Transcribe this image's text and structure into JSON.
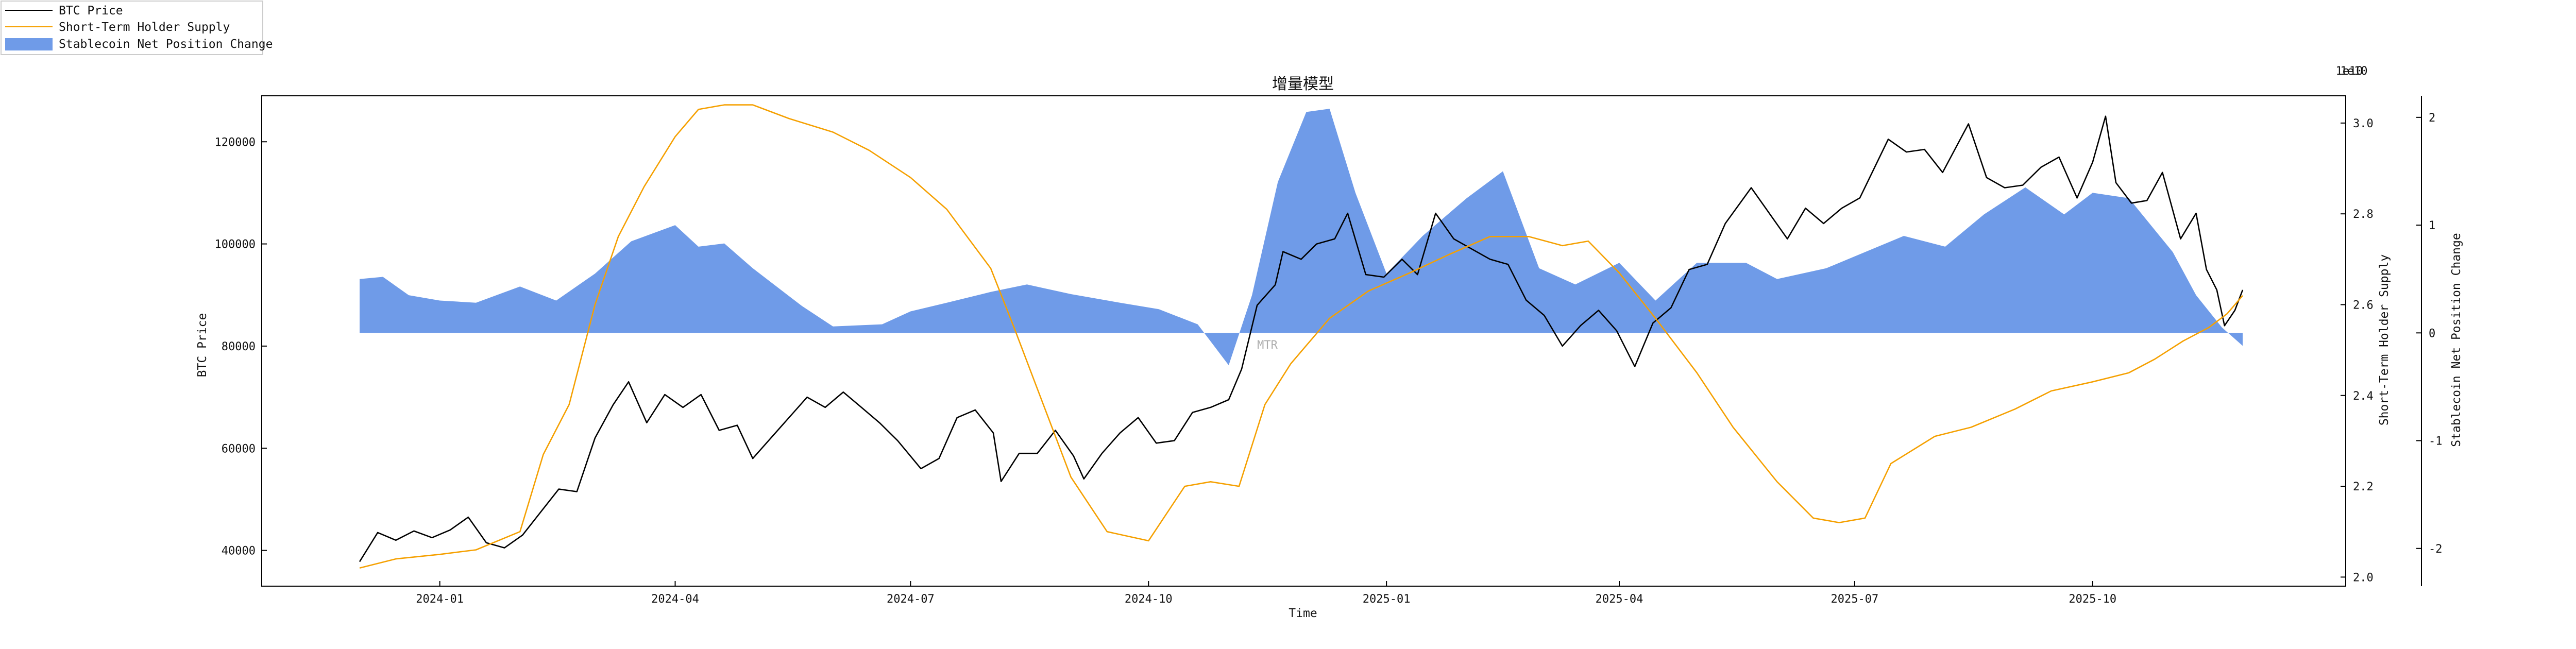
{
  "chart_data": {
    "type": "line",
    "title": "增量模型",
    "xlabel": "Time",
    "x_ticks": [
      "2024-01",
      "2024-04",
      "2024-07",
      "2024-10",
      "2025-01",
      "2025-04",
      "2025-07",
      "2025-10"
    ],
    "x_range": [
      "2023-12-01",
      "2025-11-30"
    ],
    "legend": {
      "placement": "top-left outside",
      "entries": [
        "BTC Price",
        "Short-Term Holder Supply",
        "Stablecoin Net Position Change"
      ]
    },
    "watermark": "MTR",
    "grid": false,
    "axes": {
      "left": {
        "label": "BTC Price",
        "ylim": [
          33000,
          129000
        ],
        "ticks": [
          40000,
          60000,
          80000,
          100000,
          120000
        ]
      },
      "right1": {
        "label": "Short-Term Holder Supply",
        "ylim": [
          1.98,
          3.06
        ],
        "ticks": [
          "2.0",
          "2.2",
          "2.4",
          "2.6",
          "2.8",
          "3.0"
        ],
        "offset_text": "1e10"
      },
      "right2": {
        "label": "Stablecoin Net Position Change",
        "ylim": [
          -2.35,
          2.2
        ],
        "ticks": [
          "-2",
          "-1",
          "0",
          "1",
          "2"
        ],
        "offset_text": "1e10"
      }
    },
    "series": [
      {
        "name": "BTC Price",
        "type": "line",
        "axis": "left",
        "color": "#000000",
        "points": [
          [
            "2023-12-01",
            37800
          ],
          [
            "2023-12-08",
            43500
          ],
          [
            "2023-12-15",
            42000
          ],
          [
            "2023-12-22",
            43800
          ],
          [
            "2023-12-29",
            42500
          ],
          [
            "2024-01-05",
            44000
          ],
          [
            "2024-01-12",
            46500
          ],
          [
            "2024-01-19",
            41500
          ],
          [
            "2024-01-26",
            40500
          ],
          [
            "2024-02-02",
            43000
          ],
          [
            "2024-02-09",
            47500
          ],
          [
            "2024-02-16",
            52000
          ],
          [
            "2024-02-23",
            51500
          ],
          [
            "2024-03-01",
            62000
          ],
          [
            "2024-03-08",
            68500
          ],
          [
            "2024-03-14",
            73000
          ],
          [
            "2024-03-21",
            65000
          ],
          [
            "2024-03-28",
            70500
          ],
          [
            "2024-04-04",
            68000
          ],
          [
            "2024-04-11",
            70500
          ],
          [
            "2024-04-18",
            63500
          ],
          [
            "2024-04-25",
            64500
          ],
          [
            "2024-05-01",
            58000
          ],
          [
            "2024-05-08",
            62000
          ],
          [
            "2024-05-15",
            66000
          ],
          [
            "2024-05-22",
            70000
          ],
          [
            "2024-05-29",
            68000
          ],
          [
            "2024-06-05",
            71000
          ],
          [
            "2024-06-12",
            68000
          ],
          [
            "2024-06-19",
            65000
          ],
          [
            "2024-06-26",
            61500
          ],
          [
            "2024-07-05",
            56000
          ],
          [
            "2024-07-12",
            58000
          ],
          [
            "2024-07-19",
            66000
          ],
          [
            "2024-07-26",
            67500
          ],
          [
            "2024-08-02",
            63000
          ],
          [
            "2024-08-05",
            53500
          ],
          [
            "2024-08-12",
            59000
          ],
          [
            "2024-08-19",
            59000
          ],
          [
            "2024-08-26",
            63500
          ],
          [
            "2024-09-02",
            58500
          ],
          [
            "2024-09-06",
            54000
          ],
          [
            "2024-09-13",
            59000
          ],
          [
            "2024-09-20",
            63000
          ],
          [
            "2024-09-27",
            66000
          ],
          [
            "2024-10-04",
            61000
          ],
          [
            "2024-10-11",
            61500
          ],
          [
            "2024-10-18",
            67000
          ],
          [
            "2024-10-25",
            68000
          ],
          [
            "2024-11-01",
            69500
          ],
          [
            "2024-11-06",
            75500
          ],
          [
            "2024-11-12",
            88000
          ],
          [
            "2024-11-19",
            92000
          ],
          [
            "2024-11-22",
            98500
          ],
          [
            "2024-11-29",
            97000
          ],
          [
            "2024-12-05",
            100000
          ],
          [
            "2024-12-12",
            101000
          ],
          [
            "2024-12-17",
            106000
          ],
          [
            "2024-12-24",
            94000
          ],
          [
            "2024-12-31",
            93500
          ],
          [
            "2025-01-07",
            97000
          ],
          [
            "2025-01-13",
            94000
          ],
          [
            "2025-01-20",
            106000
          ],
          [
            "2025-01-27",
            101000
          ],
          [
            "2025-02-03",
            99000
          ],
          [
            "2025-02-10",
            97000
          ],
          [
            "2025-02-17",
            96000
          ],
          [
            "2025-02-24",
            89000
          ],
          [
            "2025-03-03",
            86000
          ],
          [
            "2025-03-10",
            80000
          ],
          [
            "2025-03-17",
            84000
          ],
          [
            "2025-03-24",
            87000
          ],
          [
            "2025-03-31",
            83000
          ],
          [
            "2025-04-07",
            76000
          ],
          [
            "2025-04-14",
            84500
          ],
          [
            "2025-04-21",
            87500
          ],
          [
            "2025-04-28",
            95000
          ],
          [
            "2025-05-05",
            96000
          ],
          [
            "2025-05-12",
            104000
          ],
          [
            "2025-05-22",
            111000
          ],
          [
            "2025-05-29",
            106000
          ],
          [
            "2025-06-05",
            101000
          ],
          [
            "2025-06-12",
            107000
          ],
          [
            "2025-06-19",
            104000
          ],
          [
            "2025-06-26",
            107000
          ],
          [
            "2025-07-03",
            109000
          ],
          [
            "2025-07-14",
            120500
          ],
          [
            "2025-07-21",
            118000
          ],
          [
            "2025-07-28",
            118500
          ],
          [
            "2025-08-04",
            114000
          ],
          [
            "2025-08-14",
            123500
          ],
          [
            "2025-08-21",
            113000
          ],
          [
            "2025-08-28",
            111000
          ],
          [
            "2025-09-04",
            111500
          ],
          [
            "2025-09-11",
            115000
          ],
          [
            "2025-09-18",
            117000
          ],
          [
            "2025-09-25",
            109000
          ],
          [
            "2025-10-01",
            116000
          ],
          [
            "2025-10-06",
            125000
          ],
          [
            "2025-10-10",
            112000
          ],
          [
            "2025-10-16",
            108000
          ],
          [
            "2025-10-22",
            108500
          ],
          [
            "2025-10-28",
            114000
          ],
          [
            "2025-11-04",
            101000
          ],
          [
            "2025-11-10",
            106000
          ],
          [
            "2025-11-14",
            95000
          ],
          [
            "2025-11-18",
            91000
          ],
          [
            "2025-11-21",
            84000
          ],
          [
            "2025-11-25",
            87000
          ],
          [
            "2025-11-28",
            91000
          ]
        ]
      },
      {
        "name": "Short-Term Holder Supply",
        "type": "line",
        "axis": "right1",
        "color": "#f5a000",
        "points": [
          [
            "2023-12-01",
            2.02
          ],
          [
            "2023-12-15",
            2.04
          ],
          [
            "2024-01-01",
            2.05
          ],
          [
            "2024-01-15",
            2.06
          ],
          [
            "2024-02-01",
            2.1
          ],
          [
            "2024-02-10",
            2.27
          ],
          [
            "2024-02-20",
            2.38
          ],
          [
            "2024-03-01",
            2.6
          ],
          [
            "2024-03-10",
            2.75
          ],
          [
            "2024-03-20",
            2.86
          ],
          [
            "2024-04-01",
            2.97
          ],
          [
            "2024-04-10",
            3.03
          ],
          [
            "2024-04-20",
            3.04
          ],
          [
            "2024-05-01",
            3.04
          ],
          [
            "2024-05-15",
            3.01
          ],
          [
            "2024-06-01",
            2.98
          ],
          [
            "2024-06-15",
            2.94
          ],
          [
            "2024-07-01",
            2.88
          ],
          [
            "2024-07-15",
            2.81
          ],
          [
            "2024-08-01",
            2.68
          ],
          [
            "2024-08-10",
            2.55
          ],
          [
            "2024-08-20",
            2.4
          ],
          [
            "2024-09-01",
            2.22
          ],
          [
            "2024-09-15",
            2.1
          ],
          [
            "2024-10-01",
            2.08
          ],
          [
            "2024-10-15",
            2.2
          ],
          [
            "2024-10-25",
            2.21
          ],
          [
            "2024-11-05",
            2.2
          ],
          [
            "2024-11-15",
            2.38
          ],
          [
            "2024-11-25",
            2.47
          ],
          [
            "2024-12-10",
            2.57
          ],
          [
            "2024-12-25",
            2.63
          ],
          [
            "2025-01-10",
            2.67
          ],
          [
            "2025-01-25",
            2.71
          ],
          [
            "2025-02-10",
            2.75
          ],
          [
            "2025-02-25",
            2.75
          ],
          [
            "2025-03-10",
            2.73
          ],
          [
            "2025-03-20",
            2.74
          ],
          [
            "2025-04-01",
            2.67
          ],
          [
            "2025-04-15",
            2.57
          ],
          [
            "2025-05-01",
            2.45
          ],
          [
            "2025-05-15",
            2.33
          ],
          [
            "2025-06-01",
            2.21
          ],
          [
            "2025-06-15",
            2.13
          ],
          [
            "2025-06-25",
            2.12
          ],
          [
            "2025-07-05",
            2.13
          ],
          [
            "2025-07-15",
            2.25
          ],
          [
            "2025-08-01",
            2.31
          ],
          [
            "2025-08-15",
            2.33
          ],
          [
            "2025-09-01",
            2.37
          ],
          [
            "2025-09-15",
            2.41
          ],
          [
            "2025-10-01",
            2.43
          ],
          [
            "2025-10-15",
            2.45
          ],
          [
            "2025-10-25",
            2.48
          ],
          [
            "2025-11-05",
            2.52
          ],
          [
            "2025-11-15",
            2.55
          ],
          [
            "2025-11-22",
            2.58
          ],
          [
            "2025-11-28",
            2.62
          ]
        ]
      },
      {
        "name": "Stablecoin Net Position Change",
        "type": "area",
        "axis": "right2",
        "color": "#6f9be8",
        "points": [
          [
            "2023-12-01",
            0.5
          ],
          [
            "2023-12-10",
            0.52
          ],
          [
            "2023-12-20",
            0.35
          ],
          [
            "2024-01-01",
            0.3
          ],
          [
            "2024-01-15",
            0.28
          ],
          [
            "2024-02-01",
            0.43
          ],
          [
            "2024-02-15",
            0.3
          ],
          [
            "2024-03-01",
            0.55
          ],
          [
            "2024-03-15",
            0.85
          ],
          [
            "2024-04-01",
            1.0
          ],
          [
            "2024-04-10",
            0.8
          ],
          [
            "2024-04-20",
            0.83
          ],
          [
            "2024-05-01",
            0.6
          ],
          [
            "2024-05-20",
            0.25
          ],
          [
            "2024-06-01",
            0.06
          ],
          [
            "2024-06-20",
            0.08
          ],
          [
            "2024-07-01",
            0.2
          ],
          [
            "2024-07-15",
            0.28
          ],
          [
            "2024-08-01",
            0.38
          ],
          [
            "2024-08-15",
            0.45
          ],
          [
            "2024-09-01",
            0.36
          ],
          [
            "2024-09-20",
            0.28
          ],
          [
            "2024-10-05",
            0.22
          ],
          [
            "2024-10-20",
            0.08
          ],
          [
            "2024-11-01",
            -0.3
          ],
          [
            "2024-11-10",
            0.35
          ],
          [
            "2024-11-20",
            1.4
          ],
          [
            "2024-12-01",
            2.05
          ],
          [
            "2024-12-10",
            2.08
          ],
          [
            "2024-12-20",
            1.3
          ],
          [
            "2025-01-01",
            0.55
          ],
          [
            "2025-01-15",
            0.9
          ],
          [
            "2025-02-01",
            1.25
          ],
          [
            "2025-02-15",
            1.5
          ],
          [
            "2025-03-01",
            0.6
          ],
          [
            "2025-03-15",
            0.45
          ],
          [
            "2025-04-01",
            0.65
          ],
          [
            "2025-04-15",
            0.3
          ],
          [
            "2025-05-01",
            0.65
          ],
          [
            "2025-05-20",
            0.65
          ],
          [
            "2025-06-01",
            0.5
          ],
          [
            "2025-06-20",
            0.6
          ],
          [
            "2025-07-05",
            0.75
          ],
          [
            "2025-07-20",
            0.9
          ],
          [
            "2025-08-05",
            0.8
          ],
          [
            "2025-08-20",
            1.1
          ],
          [
            "2025-09-05",
            1.35
          ],
          [
            "2025-09-20",
            1.1
          ],
          [
            "2025-10-01",
            1.3
          ],
          [
            "2025-10-15",
            1.25
          ],
          [
            "2025-11-01",
            0.75
          ],
          [
            "2025-11-10",
            0.35
          ],
          [
            "2025-11-20",
            0.05
          ],
          [
            "2025-11-28",
            -0.12
          ]
        ]
      }
    ]
  }
}
